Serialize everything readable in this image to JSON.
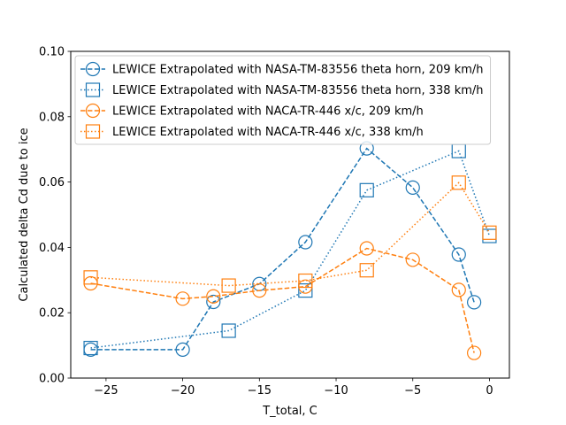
{
  "chart_data": {
    "type": "line",
    "title": "",
    "xlabel": "T_total, C",
    "ylabel": "Calculated delta Cd due to ice",
    "xlim": [
      -27.3,
      1.3
    ],
    "ylim": [
      0.0,
      0.1
    ],
    "xticks": [
      -25,
      -20,
      -15,
      -10,
      -5,
      0
    ],
    "xtick_labels": [
      "−25",
      "−20",
      "−15",
      "−10",
      "−5",
      "0"
    ],
    "yticks": [
      0.0,
      0.02,
      0.04,
      0.06,
      0.08,
      0.1
    ],
    "ytick_labels": [
      "0.00",
      "0.02",
      "0.04",
      "0.06",
      "0.08",
      "0.10"
    ],
    "grid": false,
    "legend_position": "top-left",
    "series": [
      {
        "name": "LEWICE Extrapolated with NASA-TM-83556 theta horn, 209 km/h",
        "color": "#1f77b4",
        "marker": "circle",
        "linestyle": "dashed",
        "x": [
          -26,
          -20,
          -18,
          -15,
          -12,
          -8,
          -5,
          -2,
          -1
        ],
        "y": [
          0.0087,
          0.0087,
          0.0233,
          0.0288,
          0.0416,
          0.0703,
          0.0583,
          0.0378,
          0.0232
        ]
      },
      {
        "name": "LEWICE Extrapolated with NASA-TM-83556 theta horn, 338 km/h",
        "color": "#1f77b4",
        "marker": "square",
        "linestyle": "dotted",
        "x": [
          -26,
          -17,
          -12,
          -8,
          -2,
          0
        ],
        "y": [
          0.0092,
          0.0145,
          0.0268,
          0.0575,
          0.0695,
          0.0435
        ]
      },
      {
        "name": "LEWICE Extrapolated with NACA-TR-446 x/c, 209 km/h",
        "color": "#ff7f0e",
        "marker": "circle",
        "linestyle": "dashed",
        "x": [
          -26,
          -20,
          -18,
          -15,
          -12,
          -8,
          -5,
          -2,
          -1
        ],
        "y": [
          0.029,
          0.0243,
          0.025,
          0.0268,
          0.028,
          0.0397,
          0.0362,
          0.027,
          0.0077
        ]
      },
      {
        "name": "LEWICE Extrapolated with NACA-TR-446 x/c, 338 km/h",
        "color": "#ff7f0e",
        "marker": "square",
        "linestyle": "dotted",
        "x": [
          -26,
          -17,
          -12,
          -8,
          -2,
          0
        ],
        "y": [
          0.0308,
          0.0283,
          0.0298,
          0.033,
          0.0598,
          0.0445
        ]
      }
    ]
  }
}
